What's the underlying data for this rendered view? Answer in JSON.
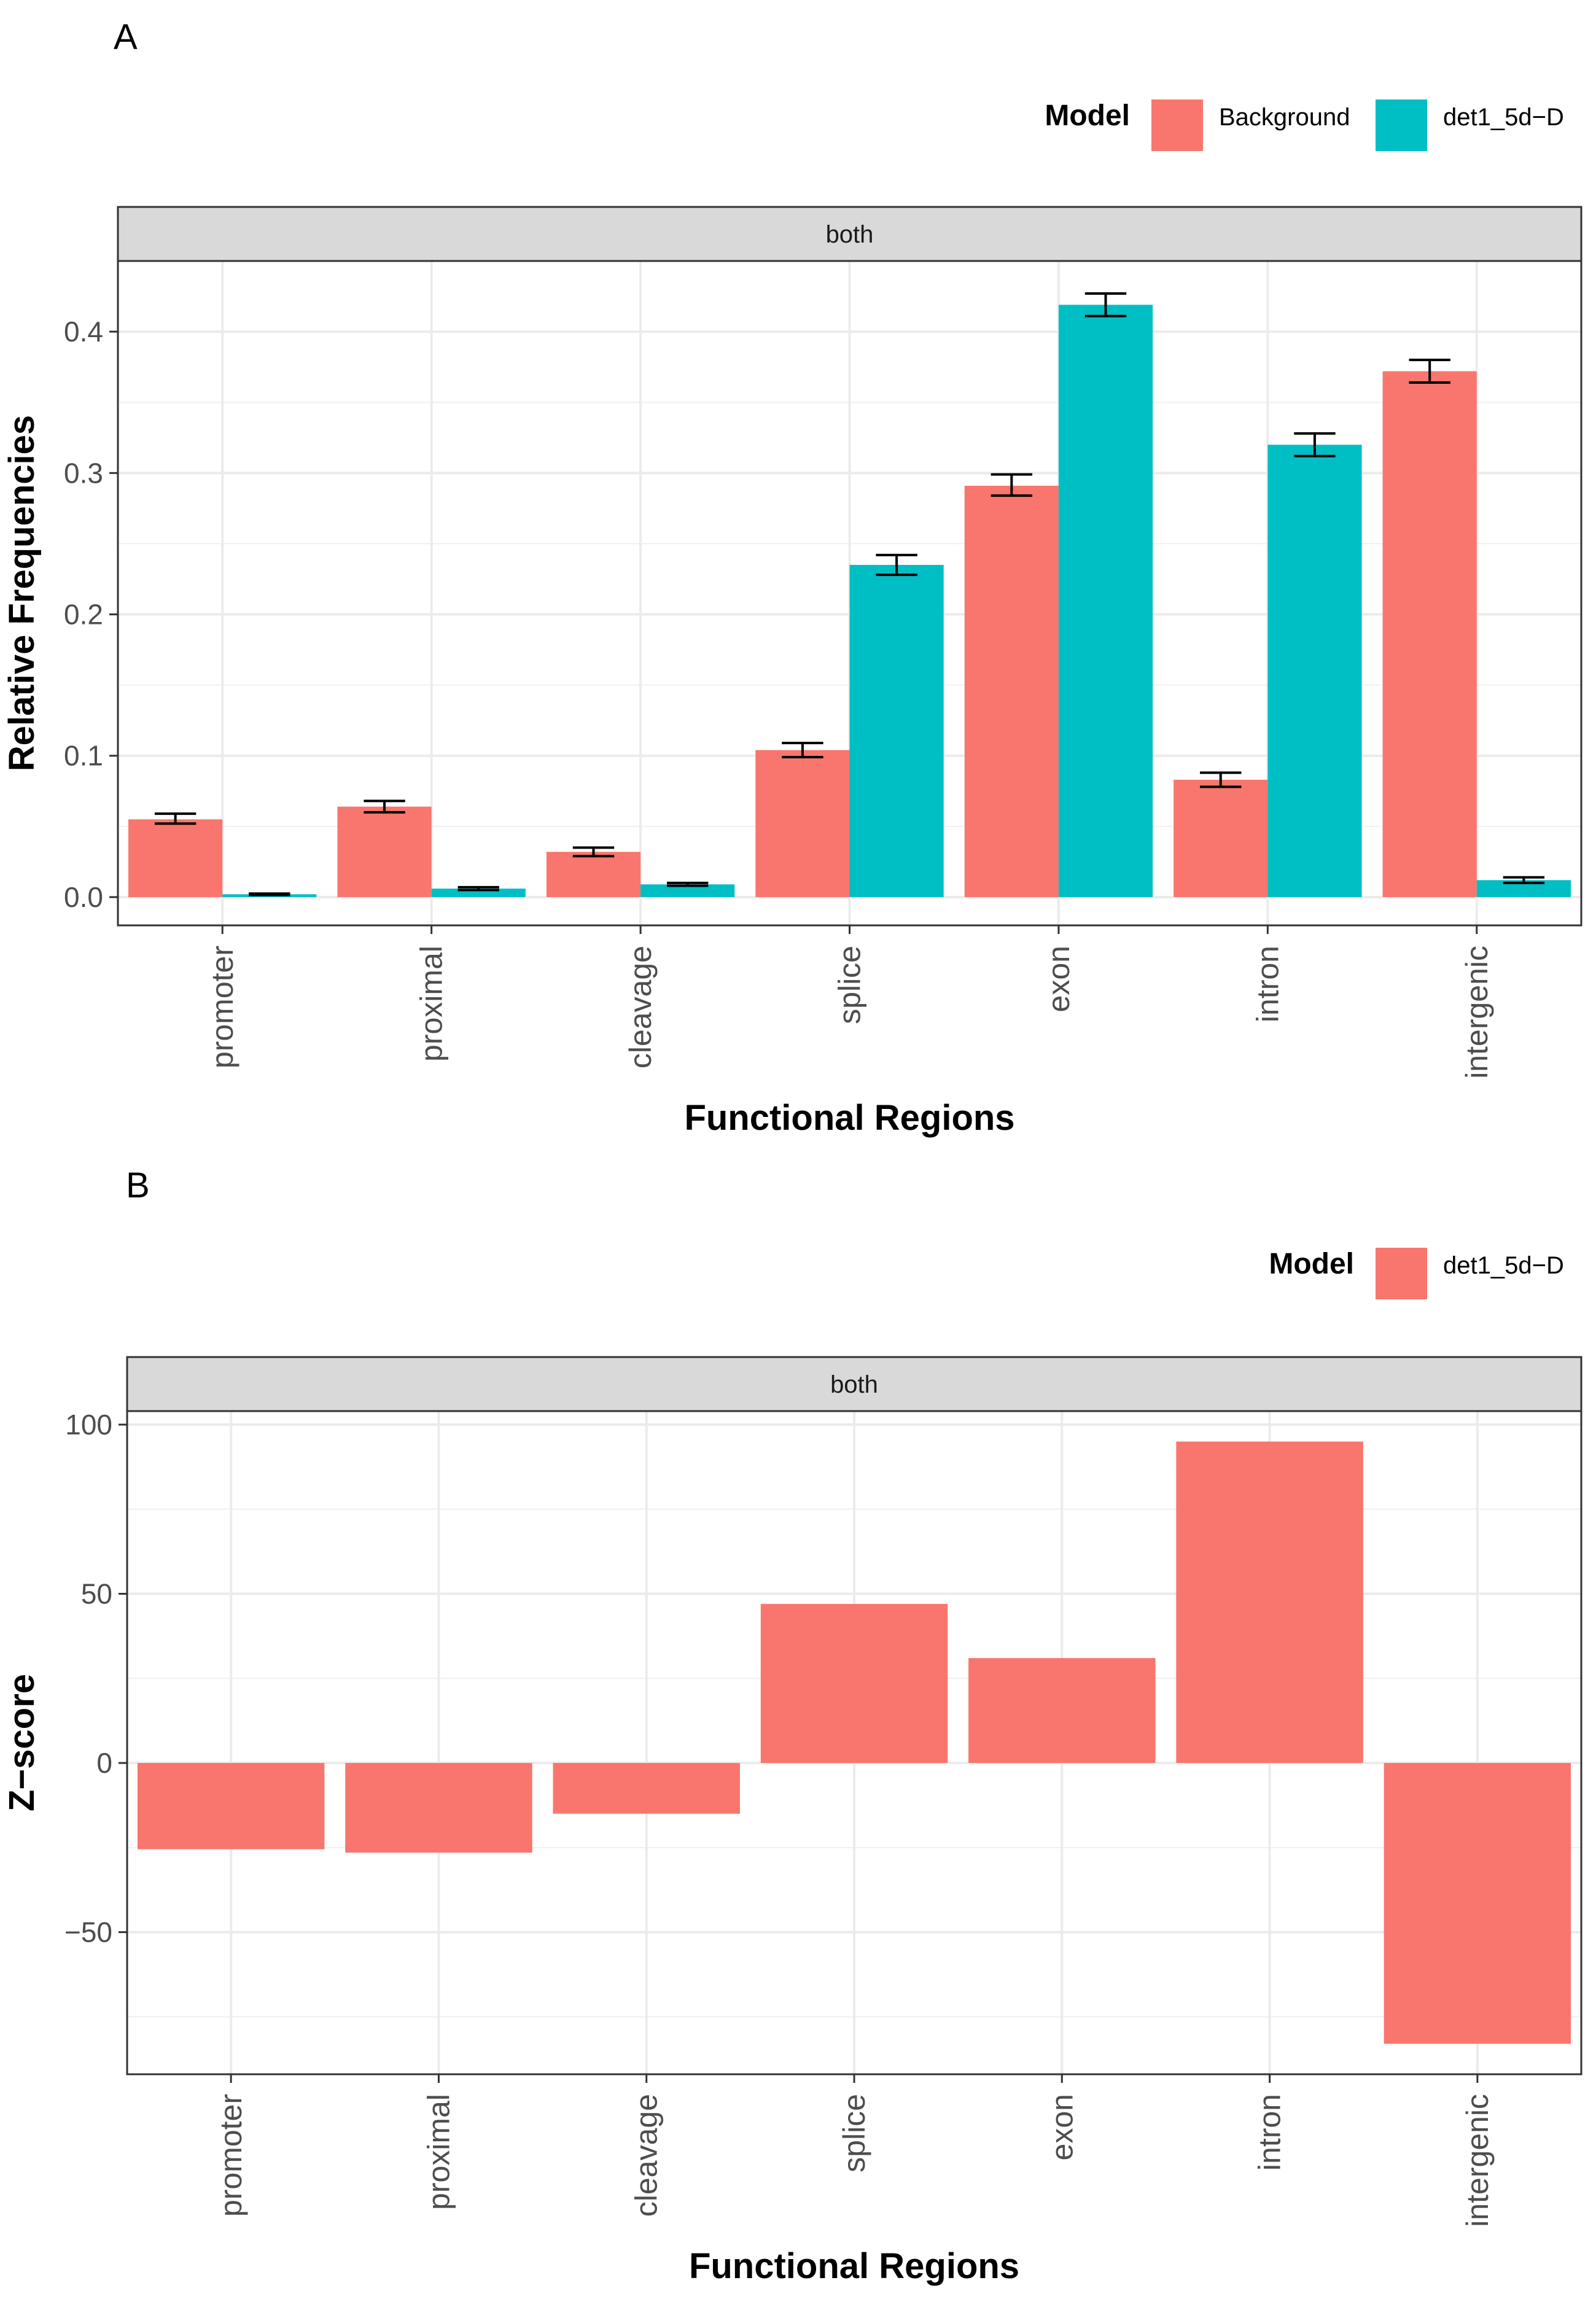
{
  "chart_data": [
    {
      "panel_label": "A",
      "type": "bar",
      "facet": "both",
      "legend": {
        "title": "Model",
        "position": "top-right",
        "entries": [
          "Background",
          "det1_5d−D"
        ]
      },
      "colors": {
        "Background": "#F8766D",
        "det1_5d−D": "#00BFC4"
      },
      "xlabel": "Functional Regions",
      "ylabel": "Relative Frequencies",
      "ylim": [
        -0.02,
        0.45
      ],
      "yticks": [
        0.0,
        0.1,
        0.2,
        0.3,
        0.4
      ],
      "ytick_labels": [
        "0.0",
        "0.1",
        "0.2",
        "0.3",
        "0.4"
      ],
      "categories": [
        "promoter",
        "proximal",
        "cleavage",
        "splice",
        "exon",
        "intron",
        "intergenic"
      ],
      "grid": true,
      "series": [
        {
          "name": "Background",
          "values": [
            0.055,
            0.064,
            0.032,
            0.104,
            0.291,
            0.083,
            0.372
          ],
          "error_low": [
            0.052,
            0.06,
            0.029,
            0.099,
            0.284,
            0.078,
            0.364
          ],
          "error_high": [
            0.059,
            0.068,
            0.035,
            0.109,
            0.299,
            0.088,
            0.38
          ]
        },
        {
          "name": "det1_5d−D",
          "values": [
            0.002,
            0.006,
            0.009,
            0.235,
            0.419,
            0.32,
            0.012
          ],
          "error_low": [
            0.0015,
            0.005,
            0.008,
            0.228,
            0.411,
            0.312,
            0.01
          ],
          "error_high": [
            0.0025,
            0.007,
            0.01,
            0.242,
            0.427,
            0.328,
            0.014
          ]
        }
      ]
    },
    {
      "panel_label": "B",
      "type": "bar",
      "facet": "both",
      "legend": {
        "title": "Model",
        "position": "top-right",
        "entries": [
          "det1_5d−D"
        ]
      },
      "colors": {
        "det1_5d−D": "#F8766D"
      },
      "xlabel": "Functional Regions",
      "ylabel": "Z−score",
      "ylim": [
        -92,
        104
      ],
      "yticks": [
        -50,
        0,
        50,
        100
      ],
      "ytick_labels": [
        "−50",
        "0",
        "50",
        "100"
      ],
      "categories": [
        "promoter",
        "proximal",
        "cleavage",
        "splice",
        "exon",
        "intron",
        "intergenic"
      ],
      "grid": true,
      "series": [
        {
          "name": "det1_5d−D",
          "values": [
            -25.5,
            -26.5,
            -15,
            47,
            31,
            95,
            -83
          ]
        }
      ]
    }
  ]
}
